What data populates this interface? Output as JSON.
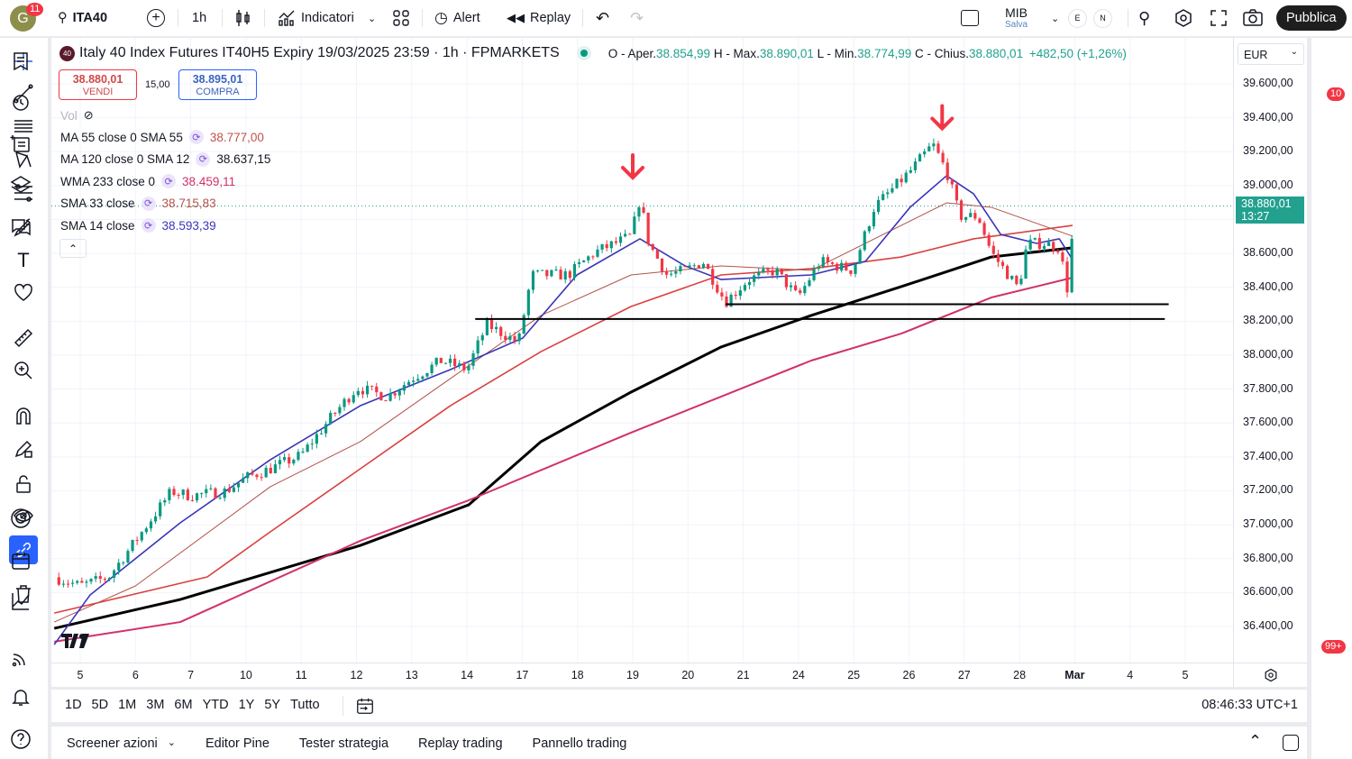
{
  "topbar": {
    "avatar_letter": "G",
    "avatar_badge": "11",
    "symbol": "ITA40",
    "interval": "1h",
    "indicators_label": "Indicatori",
    "alert_label": "Alert",
    "replay_label": "Replay",
    "layout_name": "MIB",
    "layout_status": "Salva",
    "flag_e": "E",
    "flag_n": "N",
    "publish_label": "Pubblica"
  },
  "legend": {
    "badge": "40",
    "title": "Italy 40 Index Futures IT40H5 Expiry 19/03/2025 23:59 · 1h · FPMARKETS",
    "o_label": "O - Aper.",
    "o_value": "38.854,99",
    "h_label": "H - Max.",
    "h_value": "38.890,01",
    "l_label": "L - Min.",
    "l_value": "38.774,99",
    "c_label": "C - Chius.",
    "c_value": "38.880,01",
    "change": "+482,50 (+1,26%)",
    "sell_price": "38.880,01",
    "sell_label": "VENDI",
    "spread": "15,00",
    "buy_price": "38.895,01",
    "buy_label": "COMPRA",
    "vol_label": "Vol"
  },
  "indicators": [
    {
      "label": "MA 55 close 0 SMA 55",
      "value": "38.777,00",
      "color": "#c0504d"
    },
    {
      "label": "MA 120 close 0 SMA 12",
      "value": "38.637,15",
      "color": "#131722"
    },
    {
      "label": "WMA 233 close 0",
      "value": "38.459,11",
      "color": "#d1306a"
    },
    {
      "label": "SMA 33 close",
      "value": "38.715,83",
      "color": "#b2524a"
    },
    {
      "label": "SMA 14 close",
      "value": "38.593,39",
      "color": "#3a35b8"
    }
  ],
  "currency": "EUR",
  "last_price_label": {
    "price": "38.880,01",
    "countdown": "13:27"
  },
  "range_buttons": [
    "1D",
    "5D",
    "1M",
    "3M",
    "6M",
    "YTD",
    "1Y",
    "5Y",
    "Tutto"
  ],
  "clock": "08:46:33 UTC+1",
  "bottom_tabs": [
    "Screener azioni",
    "Editor Pine",
    "Tester strategia",
    "Replay trading",
    "Pannello trading"
  ],
  "right_badges": {
    "alerts": "10",
    "notifications": "99+"
  },
  "colors": {
    "up": "#089981",
    "down": "#f23645",
    "accent": "#2962ff",
    "last_price": "#22a18f"
  },
  "chart_data": {
    "type": "candlestick",
    "timeframe": "1h",
    "x_unit": "trading day index (0 = day 5)",
    "x_ticks": [
      {
        "d": 0,
        "label": "5"
      },
      {
        "d": 1,
        "label": "6"
      },
      {
        "d": 2,
        "label": "7"
      },
      {
        "d": 3,
        "label": "10"
      },
      {
        "d": 4,
        "label": "11"
      },
      {
        "d": 5,
        "label": "12"
      },
      {
        "d": 6,
        "label": "13"
      },
      {
        "d": 7,
        "label": "14"
      },
      {
        "d": 8,
        "label": "17"
      },
      {
        "d": 9,
        "label": "18"
      },
      {
        "d": 10,
        "label": "19"
      },
      {
        "d": 11,
        "label": "20"
      },
      {
        "d": 12,
        "label": "21"
      },
      {
        "d": 13,
        "label": "24"
      },
      {
        "d": 14,
        "label": "25"
      },
      {
        "d": 15,
        "label": "26"
      },
      {
        "d": 16,
        "label": "27"
      },
      {
        "d": 17,
        "label": "28"
      },
      {
        "d": 18,
        "label": "Mar",
        "bold": true
      },
      {
        "d": 19,
        "label": "4"
      },
      {
        "d": 20,
        "label": "5"
      }
    ],
    "y_ticks": [
      36400,
      36600,
      36800,
      37000,
      37200,
      37400,
      37600,
      37800,
      38000,
      38200,
      38400,
      38600,
      38800,
      39000,
      39200,
      39400,
      39600
    ],
    "ylim": [
      36280,
      39880
    ],
    "price_path": [
      [
        -0.47,
        36690
      ],
      [
        0,
        36640
      ],
      [
        0.51,
        36690
      ],
      [
        1.0,
        36905
      ],
      [
        1.65,
        37197
      ],
      [
        1.99,
        37171
      ],
      [
        2.63,
        37197
      ],
      [
        3.0,
        37277
      ],
      [
        3.44,
        37330
      ],
      [
        4.0,
        37410
      ],
      [
        4.58,
        37649
      ],
      [
        5.01,
        37809
      ],
      [
        5.56,
        37755
      ],
      [
        6.0,
        37862
      ],
      [
        6.54,
        37968
      ],
      [
        7.0,
        37915
      ],
      [
        7.36,
        38181
      ],
      [
        7.93,
        38074
      ],
      [
        8.17,
        38473
      ],
      [
        8.83,
        38473
      ],
      [
        9.31,
        38606
      ],
      [
        9.97,
        38702
      ],
      [
        10.13,
        38925
      ],
      [
        10.29,
        38659
      ],
      [
        10.62,
        38473
      ],
      [
        10.95,
        38500
      ],
      [
        11.27,
        38553
      ],
      [
        11.68,
        38314
      ],
      [
        12.09,
        38446
      ],
      [
        12.58,
        38500
      ],
      [
        12.99,
        38340
      ],
      [
        13.39,
        38553
      ],
      [
        13.98,
        38500
      ],
      [
        14.37,
        38872
      ],
      [
        15.02,
        39084
      ],
      [
        15.43,
        39244
      ],
      [
        15.68,
        39084
      ],
      [
        15.92,
        38819
      ],
      [
        16.25,
        38819
      ],
      [
        16.49,
        38606
      ],
      [
        16.98,
        38393
      ],
      [
        17.14,
        38659
      ],
      [
        17.47,
        38659
      ],
      [
        17.72,
        38633
      ],
      [
        17.88,
        38367
      ],
      [
        17.99,
        38880
      ]
    ],
    "series": [
      {
        "name": "MA 55",
        "color": "#d9413f",
        "width": 1.6,
        "points": [
          [
            -0.47,
            36479
          ],
          [
            2.3,
            36692
          ],
          [
            3.44,
            36958
          ],
          [
            5.07,
            37330
          ],
          [
            6.7,
            37702
          ],
          [
            8.34,
            38021
          ],
          [
            9.97,
            38287
          ],
          [
            11.6,
            38473
          ],
          [
            13.23,
            38510
          ],
          [
            14.86,
            38579
          ],
          [
            16.17,
            38686
          ],
          [
            17.96,
            38765
          ]
        ]
      },
      {
        "name": "MA 120",
        "color": "#000000",
        "width": 3,
        "points": [
          [
            -0.47,
            36389
          ],
          [
            1.81,
            36559
          ],
          [
            5.07,
            36878
          ],
          [
            7.03,
            37117
          ],
          [
            8.34,
            37490
          ],
          [
            9.97,
            37782
          ],
          [
            11.6,
            38048
          ],
          [
            13.23,
            38234
          ],
          [
            14.86,
            38404
          ],
          [
            16.49,
            38579
          ],
          [
            17.96,
            38633
          ]
        ]
      },
      {
        "name": "WMA 233",
        "color": "#d1306a",
        "width": 2,
        "points": [
          [
            -0.47,
            36310
          ],
          [
            1.81,
            36426
          ],
          [
            5.07,
            36905
          ],
          [
            7.03,
            37144
          ],
          [
            9.97,
            37543
          ],
          [
            13.23,
            37968
          ],
          [
            14.86,
            38127
          ],
          [
            16.49,
            38340
          ],
          [
            17.96,
            38457
          ]
        ]
      },
      {
        "name": "SMA 33",
        "color": "#b2524a",
        "width": 1,
        "points": [
          [
            -0.47,
            36426
          ],
          [
            1.0,
            36639
          ],
          [
            3.44,
            37224
          ],
          [
            5.07,
            37490
          ],
          [
            6.7,
            37862
          ],
          [
            8.34,
            38234
          ],
          [
            9.97,
            38473
          ],
          [
            11.6,
            38526
          ],
          [
            13.23,
            38500
          ],
          [
            14.86,
            38765
          ],
          [
            15.68,
            38898
          ],
          [
            16.49,
            38872
          ],
          [
            17.96,
            38702
          ]
        ]
      },
      {
        "name": "SMA 14",
        "color": "#3a35b8",
        "width": 1.6,
        "points": [
          [
            -0.47,
            36293
          ],
          [
            0.18,
            36586
          ],
          [
            1.81,
            37011
          ],
          [
            3.44,
            37383
          ],
          [
            5.07,
            37702
          ],
          [
            6.7,
            37915
          ],
          [
            8.01,
            38101
          ],
          [
            8.99,
            38473
          ],
          [
            10.13,
            38686
          ],
          [
            10.95,
            38526
          ],
          [
            11.6,
            38446
          ],
          [
            13.23,
            38473
          ],
          [
            14.21,
            38553
          ],
          [
            15.02,
            38872
          ],
          [
            15.68,
            39058
          ],
          [
            16.17,
            38951
          ],
          [
            16.66,
            38712
          ],
          [
            17.31,
            38659
          ],
          [
            17.72,
            38686
          ],
          [
            17.96,
            38563
          ]
        ]
      }
    ],
    "horizontal_lines": [
      {
        "from": 7.15,
        "to": 19.63,
        "price": 38213
      },
      {
        "from": 11.68,
        "to": 19.7,
        "price": 38300
      }
    ],
    "annotations": [
      {
        "type": "down-arrow",
        "d": 10.0,
        "price": 39100,
        "color": "#f23645"
      },
      {
        "type": "down-arrow",
        "d": 15.6,
        "price": 39390,
        "color": "#f23645"
      }
    ],
    "last_price": 38880.01
  }
}
